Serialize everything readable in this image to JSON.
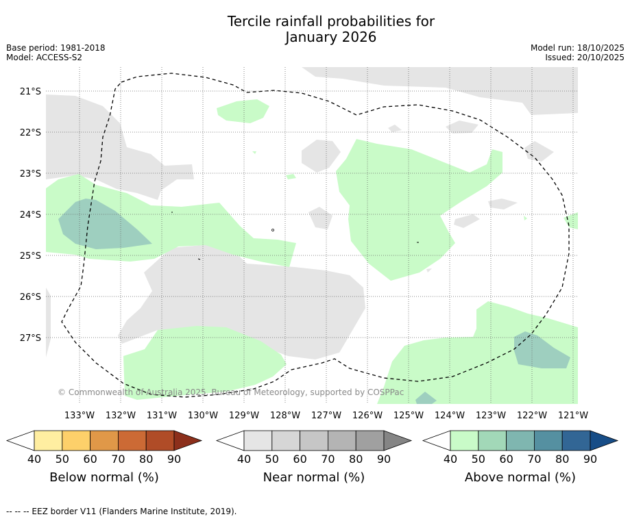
{
  "title_line1": "Tercile rainfall probabilities for",
  "title_line2": "January 2026",
  "base_period": "Base period: 1981-2018",
  "model": "Model: ACCESS-S2",
  "model_run": "Model run: 18/10/2025",
  "issued": "Issued: 20/10/2025",
  "copyright": "© Commonwealth of Australia 2025, Bureau of Meteorology, supported by COSPPac",
  "lat_labels": [
    "21°S",
    "22°S",
    "23°S",
    "24°S",
    "25°S",
    "26°S",
    "27°S"
  ],
  "lon_labels": [
    "133°W",
    "132°W",
    "131°W",
    "130°W",
    "129°W",
    "128°W",
    "127°W",
    "126°W",
    "125°W",
    "124°W",
    "123°W",
    "122°W",
    "121°W"
  ],
  "colorbars": [
    {
      "label": "Below normal (%)",
      "ticks": [
        "40",
        "50",
        "60",
        "70",
        "80",
        "90"
      ],
      "colors": [
        "#ffeea1",
        "#fdd06a",
        "#e09848",
        "#cc6a35",
        "#b04c27",
        "#8c2f1b"
      ]
    },
    {
      "label": "Near normal (%)",
      "ticks": [
        "40",
        "50",
        "60",
        "70",
        "80",
        "90"
      ],
      "colors": [
        "#e5e5e5",
        "#d6d6d6",
        "#c6c6c6",
        "#b4b4b4",
        "#a0a0a0",
        "#858585"
      ]
    },
    {
      "label": "Above normal (%)",
      "ticks": [
        "40",
        "50",
        "60",
        "70",
        "80",
        "90"
      ],
      "colors": [
        "#c9fbc8",
        "#a2d8b8",
        "#7fb6b0",
        "#5590a1",
        "#326695",
        "#174d87"
      ]
    }
  ],
  "footnote": "-- -- -- EEZ border V11 (Flanders Marine Institute, 2019).",
  "colors": {
    "near_normal_fill": "#e5e5e5",
    "above_normal_40": "#c9fbc8",
    "above_normal_50": "#9ecfbf",
    "grid": "#666666"
  }
}
